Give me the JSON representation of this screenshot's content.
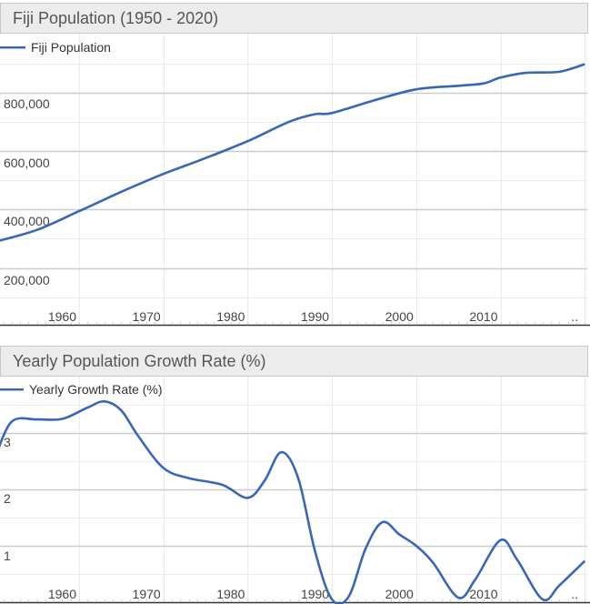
{
  "chart_data": [
    {
      "type": "line",
      "title": "Fiji Population (1950 - 2020)",
      "xlabel": "",
      "ylabel": "",
      "legend": "top-left",
      "series": [
        {
          "name": "Fiji Population",
          "color": "#3a66b7",
          "x": [
            1950,
            1955,
            1960,
            1965,
            1970,
            1975,
            1980,
            1985,
            1988,
            1990,
            1995,
            2000,
            2005,
            2008,
            2010,
            2013,
            2017,
            2020
          ],
          "values": [
            289000,
            330000,
            394000,
            460000,
            521000,
            575000,
            633000,
            700000,
            725000,
            729000,
            772000,
            810000,
            822000,
            830000,
            850000,
            866000,
            870000,
            896000
          ]
        }
      ],
      "xticks": [
        "1960",
        "1970",
        "1980",
        "1990",
        "2000",
        "2010",
        ".."
      ],
      "yticks": [
        "200,000",
        "400,000",
        "600,000",
        "800,000"
      ],
      "xlim": [
        1950,
        2020
      ],
      "ylim": [
        0,
        950000
      ],
      "grid": true
    },
    {
      "type": "line",
      "title": "Yearly Population Growth Rate (%)",
      "xlabel": "",
      "ylabel": "",
      "legend": "top-left",
      "series": [
        {
          "name": "Yearly Growth Rate (%)",
          "color": "#3a66b7",
          "x": [
            1950,
            1952,
            1955,
            1958,
            1961,
            1963,
            1965,
            1967,
            1970,
            1973,
            1977,
            1980,
            1982,
            1984,
            1986,
            1988,
            1990,
            1992,
            1994,
            1996,
            1998,
            2000,
            2002,
            2005,
            2007,
            2010,
            2012,
            2015,
            2017,
            2020
          ],
          "values": [
            2.55,
            3.2,
            3.24,
            3.25,
            3.45,
            3.56,
            3.4,
            2.95,
            2.38,
            2.2,
            2.08,
            1.85,
            2.15,
            2.66,
            2.2,
            0.9,
            0.05,
            0.1,
            0.95,
            1.42,
            1.2,
            1.0,
            0.7,
            0.08,
            0.4,
            1.1,
            0.75,
            0.05,
            0.3,
            0.73
          ]
        }
      ],
      "xticks": [
        "1960",
        "1970",
        "1980",
        "1990",
        "2000",
        "2010",
        ".."
      ],
      "yticks": [
        "1",
        "2",
        "3"
      ],
      "xlim": [
        1950,
        2020
      ],
      "ylim": [
        0,
        3.7
      ],
      "grid": true
    }
  ]
}
